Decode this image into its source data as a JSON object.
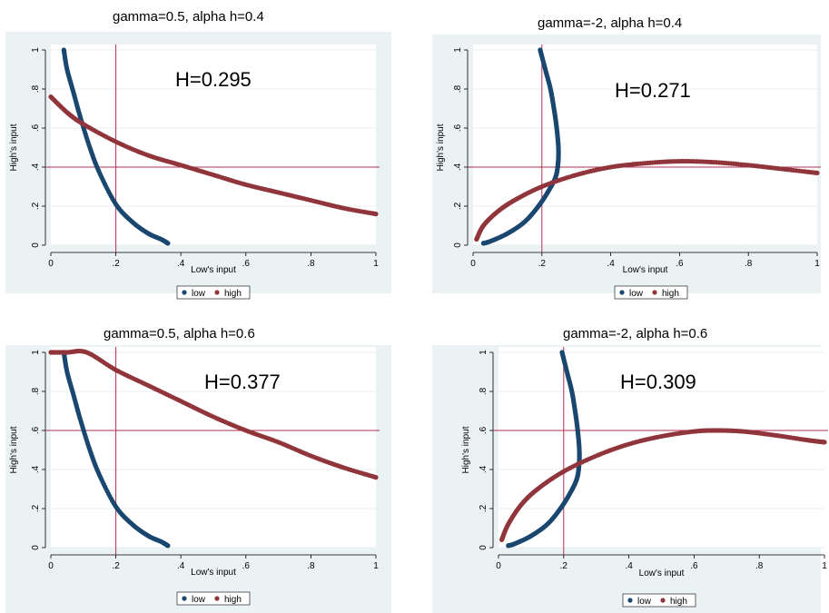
{
  "colors": {
    "low": "#1a476f",
    "high": "#90353b",
    "ref": "#b03050",
    "panel_bg": "#eaf2f3",
    "grid": "#e8eef0"
  },
  "chart_data": [
    {
      "type": "scatter",
      "title": "gamma=0.5, alpha h=0.4",
      "annotation": "H=0.295",
      "xlabel": "Low's input",
      "ylabel": "High's input",
      "xlim": [
        0,
        1
      ],
      "ylim": [
        0,
        1
      ],
      "xticks": [
        "0",
        ".2",
        ".4",
        ".6",
        ".8",
        "1"
      ],
      "yticks": [
        "0",
        ".2",
        ".4",
        ".6",
        ".8",
        "1"
      ],
      "ref_lines": {
        "x": 0.2,
        "y": 0.4
      },
      "legend": [
        "low",
        "high"
      ],
      "series": [
        {
          "name": "low",
          "points": [
            [
              0.04,
              1.0
            ],
            [
              0.05,
              0.9
            ],
            [
              0.07,
              0.78
            ],
            [
              0.09,
              0.66
            ],
            [
              0.12,
              0.5
            ],
            [
              0.15,
              0.37
            ],
            [
              0.2,
              0.21
            ],
            [
              0.25,
              0.12
            ],
            [
              0.3,
              0.06
            ],
            [
              0.34,
              0.03
            ],
            [
              0.36,
              0.01
            ]
          ]
        },
        {
          "name": "high",
          "points": [
            [
              0.0,
              0.76
            ],
            [
              0.05,
              0.68
            ],
            [
              0.1,
              0.62
            ],
            [
              0.2,
              0.53
            ],
            [
              0.3,
              0.46
            ],
            [
              0.4,
              0.41
            ],
            [
              0.5,
              0.36
            ],
            [
              0.6,
              0.31
            ],
            [
              0.7,
              0.27
            ],
            [
              0.8,
              0.23
            ],
            [
              0.9,
              0.19
            ],
            [
              1.0,
              0.16
            ]
          ]
        }
      ]
    },
    {
      "type": "scatter",
      "title": "gamma=-2, alpha h=0.4",
      "annotation": "H=0.271",
      "xlabel": "Low's input",
      "ylabel": "High's input",
      "xlim": [
        0,
        1
      ],
      "ylim": [
        0,
        1
      ],
      "xticks": [
        "0",
        ".2",
        ".4",
        ".6",
        ".8",
        "1"
      ],
      "yticks": [
        "0",
        ".2",
        ".4",
        ".6",
        ".8",
        "1"
      ],
      "ref_lines": {
        "x": 0.2,
        "y": 0.4
      },
      "legend": [
        "low",
        "high"
      ],
      "series": [
        {
          "name": "low",
          "points": [
            [
              0.195,
              1.0
            ],
            [
              0.21,
              0.9
            ],
            [
              0.225,
              0.8
            ],
            [
              0.235,
              0.7
            ],
            [
              0.243,
              0.6
            ],
            [
              0.248,
              0.5
            ],
            [
              0.247,
              0.42
            ],
            [
              0.24,
              0.35
            ],
            [
              0.22,
              0.28
            ],
            [
              0.19,
              0.2
            ],
            [
              0.15,
              0.12
            ],
            [
              0.1,
              0.06
            ],
            [
              0.05,
              0.02
            ],
            [
              0.03,
              0.01
            ]
          ]
        },
        {
          "name": "high",
          "points": [
            [
              0.01,
              0.03
            ],
            [
              0.03,
              0.1
            ],
            [
              0.07,
              0.17
            ],
            [
              0.12,
              0.23
            ],
            [
              0.2,
              0.3
            ],
            [
              0.3,
              0.36
            ],
            [
              0.4,
              0.4
            ],
            [
              0.5,
              0.42
            ],
            [
              0.6,
              0.43
            ],
            [
              0.7,
              0.425
            ],
            [
              0.8,
              0.41
            ],
            [
              0.9,
              0.39
            ],
            [
              1.0,
              0.37
            ]
          ]
        }
      ]
    },
    {
      "type": "scatter",
      "title": "gamma=0.5, alpha h=0.6",
      "annotation": "H=0.377",
      "xlabel": "Low's input",
      "ylabel": "High's input",
      "xlim": [
        0,
        1
      ],
      "ylim": [
        0,
        1
      ],
      "xticks": [
        "0",
        ".2",
        ".4",
        ".6",
        ".8",
        "1"
      ],
      "yticks": [
        "0",
        ".2",
        ".4",
        ".6",
        ".8",
        "1"
      ],
      "ref_lines": {
        "x": 0.2,
        "y": 0.6
      },
      "legend": [
        "low",
        "high"
      ],
      "series": [
        {
          "name": "low",
          "points": [
            [
              0.04,
              1.0
            ],
            [
              0.05,
              0.9
            ],
            [
              0.07,
              0.78
            ],
            [
              0.09,
              0.66
            ],
            [
              0.12,
              0.5
            ],
            [
              0.15,
              0.37
            ],
            [
              0.2,
              0.21
            ],
            [
              0.25,
              0.12
            ],
            [
              0.3,
              0.06
            ],
            [
              0.34,
              0.03
            ],
            [
              0.36,
              0.01
            ]
          ]
        },
        {
          "name": "high",
          "points": [
            [
              0.0,
              1.0
            ],
            [
              0.05,
              1.0
            ],
            [
              0.11,
              1.0
            ],
            [
              0.2,
              0.91
            ],
            [
              0.3,
              0.83
            ],
            [
              0.4,
              0.75
            ],
            [
              0.5,
              0.67
            ],
            [
              0.6,
              0.6
            ],
            [
              0.7,
              0.54
            ],
            [
              0.8,
              0.47
            ],
            [
              0.9,
              0.41
            ],
            [
              1.0,
              0.36
            ]
          ]
        }
      ]
    },
    {
      "type": "scatter",
      "title": "gamma=-2, alpha h=0.6",
      "annotation": "H=0.309",
      "xlabel": "Low's input",
      "ylabel": "High's input",
      "xlim": [
        0,
        1
      ],
      "ylim": [
        0,
        1
      ],
      "xticks": [
        "0",
        ".2",
        ".4",
        ".6",
        ".8",
        "1"
      ],
      "yticks": [
        "0",
        ".2",
        ".4",
        ".6",
        ".8",
        "1"
      ],
      "ref_lines": {
        "x": 0.2,
        "y": 0.6
      },
      "legend": [
        "low",
        "high"
      ],
      "series": [
        {
          "name": "low",
          "points": [
            [
              0.195,
              1.0
            ],
            [
              0.21,
              0.9
            ],
            [
              0.225,
              0.8
            ],
            [
              0.235,
              0.7
            ],
            [
              0.243,
              0.6
            ],
            [
              0.248,
              0.5
            ],
            [
              0.247,
              0.42
            ],
            [
              0.24,
              0.35
            ],
            [
              0.22,
              0.28
            ],
            [
              0.19,
              0.2
            ],
            [
              0.15,
              0.12
            ],
            [
              0.1,
              0.06
            ],
            [
              0.05,
              0.02
            ],
            [
              0.03,
              0.01
            ]
          ]
        },
        {
          "name": "high",
          "points": [
            [
              0.01,
              0.04
            ],
            [
              0.03,
              0.12
            ],
            [
              0.07,
              0.22
            ],
            [
              0.12,
              0.3
            ],
            [
              0.2,
              0.39
            ],
            [
              0.3,
              0.47
            ],
            [
              0.4,
              0.53
            ],
            [
              0.5,
              0.57
            ],
            [
              0.6,
              0.595
            ],
            [
              0.67,
              0.6
            ],
            [
              0.75,
              0.595
            ],
            [
              0.85,
              0.575
            ],
            [
              0.95,
              0.55
            ],
            [
              1.0,
              0.54
            ]
          ]
        }
      ]
    }
  ]
}
